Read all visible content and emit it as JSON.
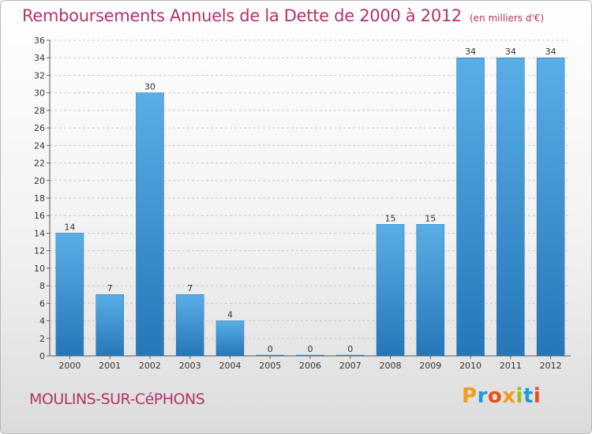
{
  "title": "Remboursements Annuels de la Dette de 2000 à 2012",
  "subtitle": "(en milliers d'€)",
  "town": "MOULINS-SUR-CéPHONS",
  "logo": {
    "letters": [
      "P",
      "r",
      "o",
      "x",
      "i",
      "t",
      "i"
    ],
    "colors": [
      "#f39a1e",
      "#1f9ad6",
      "#e94e1b",
      "#f39a1e",
      "#95c11f",
      "#1f9ad6",
      "#e94e1b"
    ]
  },
  "colors": {
    "bar": "#3a95d6",
    "title": "#b3336a",
    "grid": "#c8c8c8"
  },
  "chart_data": {
    "type": "bar",
    "categories": [
      "2000",
      "2001",
      "2002",
      "2003",
      "2004",
      "2005",
      "2006",
      "2007",
      "2008",
      "2009",
      "2010",
      "2011",
      "2012"
    ],
    "values": [
      14,
      7,
      30,
      7,
      4,
      0,
      0,
      0,
      15,
      15,
      34,
      34,
      34
    ],
    "ylim": [
      0,
      36
    ],
    "yticks": [
      0,
      2,
      4,
      6,
      8,
      10,
      12,
      14,
      16,
      18,
      20,
      22,
      24,
      26,
      28,
      30,
      32,
      34,
      36
    ],
    "grid": true
  }
}
